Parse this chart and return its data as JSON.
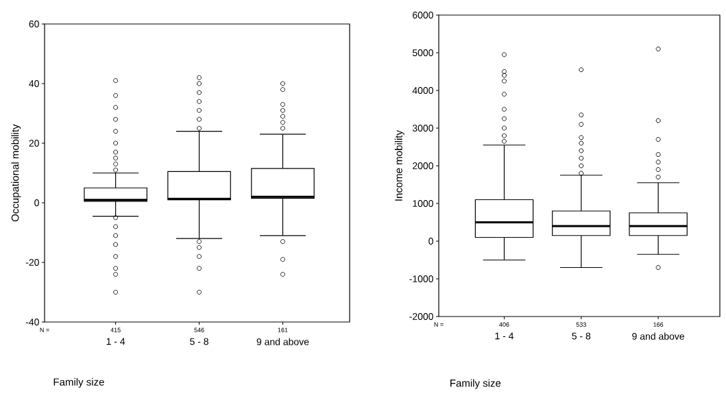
{
  "chart_data": [
    {
      "type": "box",
      "ylabel": "Occupational mobility",
      "xlabel": "Family size",
      "categories": [
        "1 - 4",
        "5 - 8",
        "9 and above"
      ],
      "ylim": [
        -40,
        60
      ],
      "yticks": [
        -40,
        -20,
        0,
        20,
        40,
        60
      ],
      "boxes": [
        {
          "low": -4.5,
          "q1": 0.5,
          "median": 1,
          "q3": 5,
          "high": 10,
          "outliers": [
            11,
            13,
            15,
            17,
            20,
            24,
            28,
            32,
            36,
            41,
            -5,
            -8,
            -11,
            -14,
            -18,
            -22,
            -24,
            -30
          ]
        },
        {
          "low": -12,
          "q1": 1,
          "median": 1.3,
          "q3": 10.5,
          "high": 24,
          "outliers": [
            25,
            28,
            31,
            34,
            37,
            40,
            42,
            -13,
            -15,
            -18,
            -22,
            -30
          ]
        },
        {
          "low": -11,
          "q1": 1.5,
          "median": 2,
          "q3": 11.5,
          "high": 23,
          "outliers": [
            25,
            27,
            29,
            31,
            33,
            38,
            40,
            -13,
            -19,
            -24
          ]
        }
      ],
      "annotations": [
        "N =",
        "415",
        "546",
        "161"
      ]
    },
    {
      "type": "box",
      "ylabel": "Income mobility",
      "xlabel": "Family size",
      "categories": [
        "1 - 4",
        "5 - 8",
        "9 and above"
      ],
      "ylim": [
        -2000,
        6000
      ],
      "yticks": [
        -2000,
        -1000,
        0,
        1000,
        2000,
        3000,
        4000,
        5000,
        6000
      ],
      "boxes": [
        {
          "low": -500,
          "q1": 100,
          "median": 500,
          "q3": 1100,
          "high": 2550,
          "outliers": [
            2650,
            2800,
            3000,
            3250,
            3500,
            3900,
            4250,
            4400,
            4500,
            4950
          ]
        },
        {
          "low": -700,
          "q1": 150,
          "median": 400,
          "q3": 800,
          "high": 1750,
          "outliers": [
            1800,
            2000,
            2200,
            2400,
            2600,
            2750,
            3100,
            3350,
            4550
          ]
        },
        {
          "low": -350,
          "q1": 150,
          "median": 400,
          "q3": 750,
          "high": 1550,
          "outliers": [
            1700,
            1900,
            2100,
            2300,
            2700,
            3200,
            5100,
            -700
          ]
        }
      ],
      "annotations": [
        "N =",
        "406",
        "533",
        "166"
      ]
    }
  ]
}
